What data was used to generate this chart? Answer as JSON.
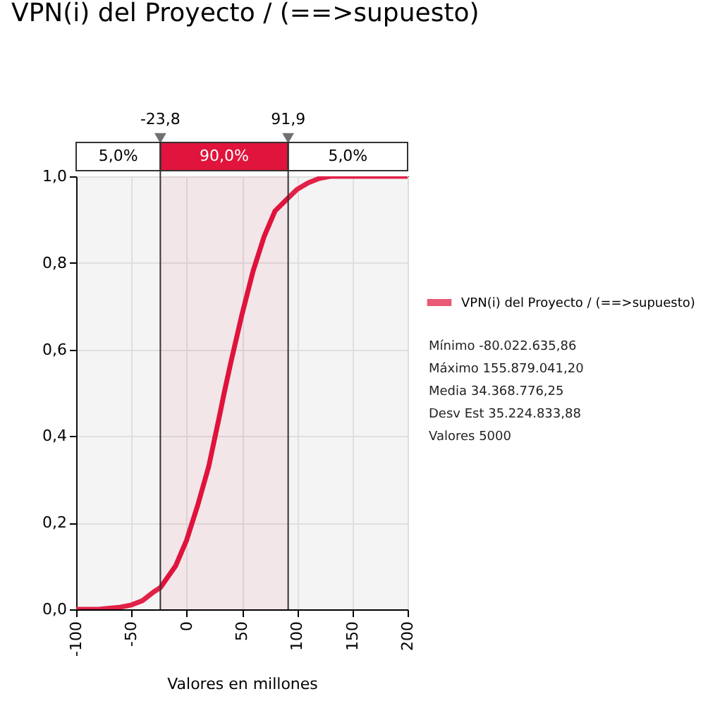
{
  "chart_data": {
    "type": "line",
    "title": "VPN(i) del Proyecto / (==>supuesto)",
    "xlabel": "Valores en millones",
    "x": [
      -100,
      -80,
      -60,
      -50,
      -40,
      -30,
      -23.8,
      -10,
      0,
      10,
      20,
      30,
      34,
      40,
      50,
      60,
      70,
      80,
      91.9,
      100,
      110,
      120,
      130,
      156,
      200
    ],
    "series": [
      {
        "name": "VPN(i) del Proyecto / (==>supuesto)",
        "color": "#e0143c",
        "values": [
          0,
          0,
          0.005,
          0.01,
          0.02,
          0.04,
          0.05,
          0.1,
          0.16,
          0.24,
          0.33,
          0.45,
          0.5,
          0.57,
          0.68,
          0.78,
          0.86,
          0.92,
          0.95,
          0.97,
          0.985,
          0.995,
          1,
          1,
          1
        ]
      }
    ],
    "xlim": [
      -100,
      200
    ],
    "xticks": [
      -100,
      -50,
      0,
      50,
      100,
      150,
      200
    ],
    "ylim": [
      0,
      1
    ],
    "yticks": [
      {
        "value": 0,
        "label": "0,0"
      },
      {
        "value": 0.2,
        "label": "0,2"
      },
      {
        "value": 0.4,
        "label": "0,4"
      },
      {
        "value": 0.6,
        "label": "0,6"
      },
      {
        "value": 0.8,
        "label": "0,8"
      },
      {
        "value": 1,
        "label": "1,0"
      }
    ],
    "ref_lines": [
      {
        "axis": "x",
        "value": -23.8,
        "label": "-23,8",
        "color": "#333333"
      },
      {
        "axis": "x",
        "value": 91.9,
        "label": "91,9",
        "color": "#333333"
      }
    ],
    "bands": [
      {
        "axis": "x",
        "from": -100,
        "to": -23.8,
        "label": "5,0%",
        "color": "#ffffff"
      },
      {
        "axis": "x",
        "from": -23.8,
        "to": 91.9,
        "label": "90,0%",
        "color": "#e0143c"
      },
      {
        "axis": "x",
        "from": 91.9,
        "to": 200,
        "label": "5,0%",
        "color": "#ffffff"
      }
    ],
    "annotations": [
      "Mínimo -80.022.635,86",
      "Máximo 155.879.041,20",
      "Media 34.368.776,25",
      "Desv Est 35.224.833,88",
      "Valores 5000"
    ],
    "grid": true,
    "legend": "right",
    "line_style": "solid"
  }
}
